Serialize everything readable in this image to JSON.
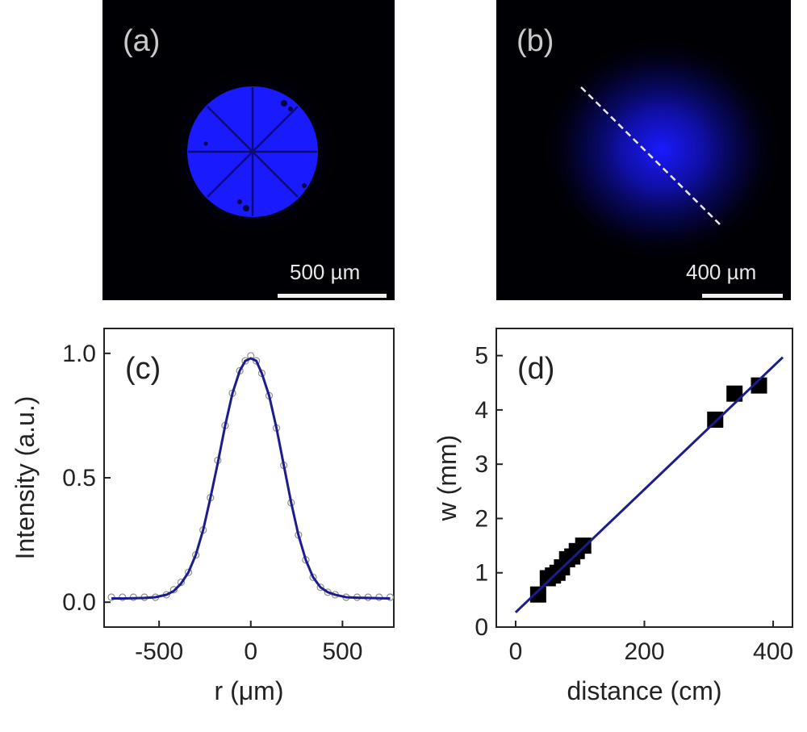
{
  "images": {
    "a": {
      "label": "(a)",
      "scale": "500 µm"
    },
    "b": {
      "label": "(b)",
      "scale": "400 µm"
    }
  },
  "colors": {
    "beam": "#1a1aff",
    "background": "#000004",
    "fit_line": "#1c1c8c",
    "raw_points": "#8c8c8c",
    "markers": "#000000"
  },
  "chart_data": [
    {
      "panel": "(c)",
      "type": "line",
      "xlabel": "r (μm)",
      "ylabel": "Intensity (a.u.)",
      "xlim": [
        -800,
        780
      ],
      "ylim": [
        -0.1,
        1.1
      ],
      "xticks": [
        -500,
        0,
        500
      ],
      "xtick_labels": [
        "-500",
        "0",
        "500"
      ],
      "yticks": [
        0.0,
        0.5,
        1.0
      ],
      "ytick_labels": [
        "0.0",
        "0.5",
        "1.0"
      ],
      "grid": false,
      "series": [
        {
          "style": "open-circles",
          "x": [
            -760,
            -700,
            -640,
            -580,
            -520,
            -460,
            -420,
            -380,
            -340,
            -300,
            -260,
            -220,
            -180,
            -140,
            -100,
            -60,
            -30,
            0,
            30,
            60,
            100,
            140,
            180,
            220,
            260,
            300,
            340,
            380,
            420,
            460,
            520,
            580,
            640,
            700,
            760
          ],
          "y": [
            0.02,
            0.02,
            0.02,
            0.02,
            0.02,
            0.03,
            0.05,
            0.08,
            0.12,
            0.19,
            0.29,
            0.42,
            0.57,
            0.71,
            0.84,
            0.93,
            0.97,
            0.99,
            0.97,
            0.92,
            0.83,
            0.7,
            0.55,
            0.4,
            0.27,
            0.17,
            0.1,
            0.06,
            0.04,
            0.03,
            0.02,
            0.02,
            0.02,
            0.02,
            0.02
          ]
        },
        {
          "style": "line",
          "x": [
            -760,
            -700,
            -640,
            -580,
            -520,
            -460,
            -420,
            -380,
            -340,
            -300,
            -260,
            -220,
            -180,
            -140,
            -100,
            -60,
            -30,
            0,
            30,
            60,
            100,
            140,
            180,
            220,
            260,
            300,
            340,
            380,
            420,
            460,
            520,
            580,
            640,
            700,
            760
          ],
          "y": [
            0.015,
            0.015,
            0.016,
            0.017,
            0.02,
            0.03,
            0.045,
            0.075,
            0.12,
            0.19,
            0.29,
            0.42,
            0.56,
            0.71,
            0.84,
            0.93,
            0.97,
            0.98,
            0.97,
            0.92,
            0.83,
            0.7,
            0.55,
            0.4,
            0.27,
            0.17,
            0.1,
            0.06,
            0.04,
            0.03,
            0.02,
            0.018,
            0.017,
            0.016,
            0.015
          ]
        }
      ]
    },
    {
      "panel": "(d)",
      "type": "scatter",
      "xlabel": "distance (cm)",
      "ylabel": "w (mm)",
      "xlim": [
        -30,
        430
      ],
      "ylim": [
        0,
        5.5
      ],
      "xticks": [
        0,
        200,
        400
      ],
      "xtick_labels": [
        "0",
        "200",
        "400"
      ],
      "yticks": [
        0,
        1,
        2,
        3,
        4,
        5
      ],
      "ytick_labels": [
        "0",
        "1",
        "2",
        "3",
        "4",
        "5"
      ],
      "grid": false,
      "series": [
        {
          "style": "filled-squares",
          "x": [
            35,
            50,
            58,
            65,
            72,
            80,
            88,
            95,
            105,
            310,
            340,
            378
          ],
          "y": [
            0.6,
            0.9,
            0.95,
            1.0,
            1.1,
            1.25,
            1.3,
            1.4,
            1.5,
            3.82,
            4.3,
            4.45
          ]
        },
        {
          "style": "line",
          "x": [
            0,
            415
          ],
          "y": [
            0.27,
            4.97
          ]
        }
      ]
    }
  ]
}
